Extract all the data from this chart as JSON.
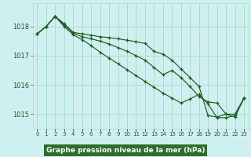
{
  "background_color": "#cff0f0",
  "plot_bg_color": "#cff0f0",
  "grid_color": "#aaddcc",
  "line_color": "#1e5c1e",
  "label_bg_color": "#2d6e2d",
  "label_text_color": "#ffffff",
  "title": "Graphe pression niveau de la mer (hPa)",
  "xlim": [
    -0.5,
    23.5
  ],
  "ylim": [
    1014.5,
    1018.8
  ],
  "yticks": [
    1015,
    1016,
    1017,
    1018
  ],
  "xtick_labels": [
    "0",
    "1",
    "2",
    "3",
    "4",
    "5",
    "6",
    "7",
    "8",
    "9",
    "10",
    "11",
    "12",
    "13",
    "14",
    "15",
    "16",
    "17",
    "18",
    "19",
    "20",
    "21",
    "22",
    "23"
  ],
  "series": [
    [
      1017.75,
      1018.0,
      1018.35,
      1018.1,
      1017.8,
      1017.75,
      1017.7,
      1017.65,
      1017.62,
      1017.58,
      1017.53,
      1017.48,
      1017.42,
      1017.15,
      1017.05,
      1016.85,
      1016.55,
      1016.25,
      1015.95,
      1014.95,
      1014.9,
      1015.0,
      1015.0,
      1015.55
    ],
    [
      1017.75,
      1018.0,
      1018.35,
      1018.05,
      1017.78,
      1017.65,
      1017.58,
      1017.5,
      1017.4,
      1017.28,
      1017.15,
      1017.0,
      1016.85,
      1016.6,
      1016.35,
      1016.5,
      1016.25,
      1015.95,
      1015.6,
      1015.42,
      1015.38,
      1015.0,
      1014.9,
      1015.55
    ],
    [
      1017.75,
      1018.0,
      1018.35,
      1018.0,
      1017.72,
      1017.55,
      1017.35,
      1017.12,
      1016.92,
      1016.72,
      1016.52,
      1016.32,
      1016.12,
      1015.92,
      1015.72,
      1015.55,
      1015.38,
      1015.52,
      1015.68,
      1015.35,
      1014.88,
      1014.88,
      1014.95,
      1015.55
    ]
  ]
}
